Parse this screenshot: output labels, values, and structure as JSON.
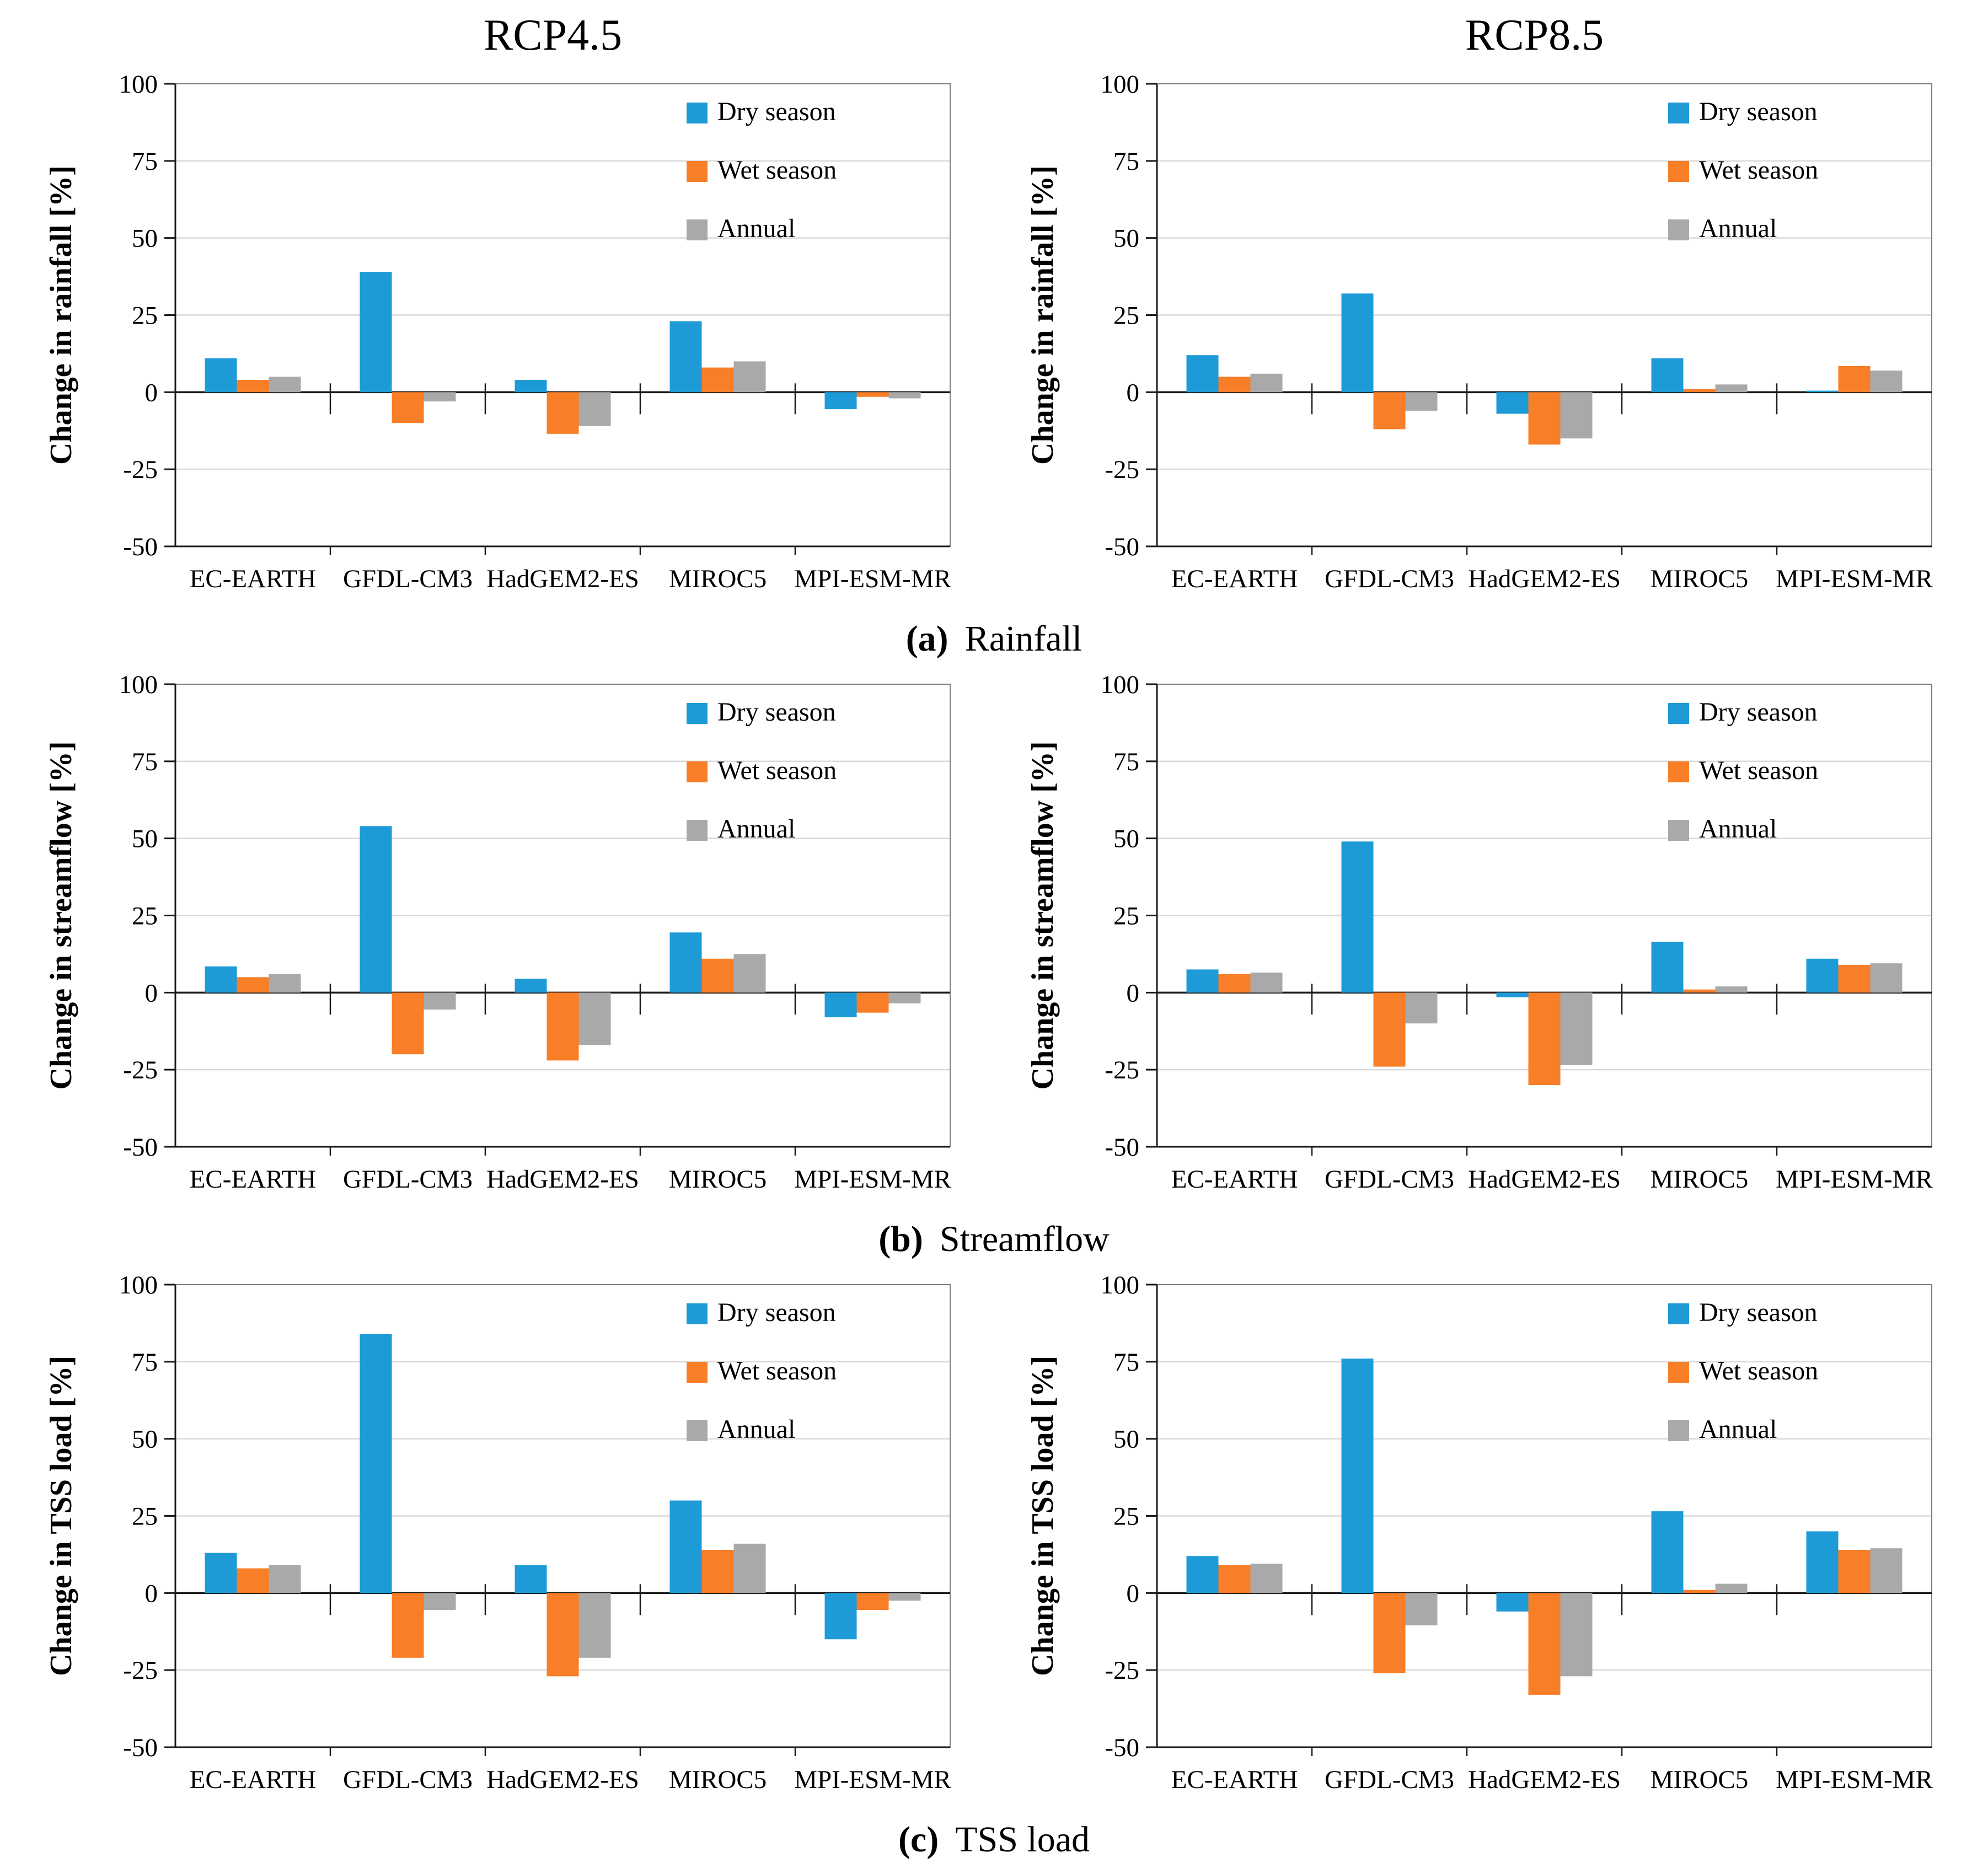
{
  "figure": {
    "column_titles": [
      "RCP4.5",
      "RCP8.5"
    ],
    "captions": [
      {
        "marker": "(a)",
        "label": "Rainfall"
      },
      {
        "marker": "(b)",
        "label": "Streamflow"
      },
      {
        "marker": "(c)",
        "label": "TSS load"
      }
    ],
    "legend": [
      "Dry season",
      "Wet season",
      "Annual"
    ],
    "colors": {
      "dry": "#1E9BD7",
      "wet": "#F87E27",
      "annual": "#A9A9A9",
      "grid": "#D9D9D9",
      "zero_axis": "#1A1A1A",
      "frame": "#7F7F7F",
      "text": "#000000"
    },
    "y_axis": {
      "min": -50,
      "max": 100,
      "tick_step": 25,
      "tick_labels": [
        "100",
        "75",
        "50",
        "25",
        "0",
        "-25",
        "-50"
      ]
    },
    "categories": [
      "EC-EARTH",
      "GFDL-CM3",
      "HadGEM2-ES",
      "MIROC5",
      "MPI-ESM-MR"
    ]
  },
  "chart_data": [
    {
      "type": "bar",
      "panel": "rainfall-rcp45",
      "scenario": "RCP4.5",
      "title": "RCP4.5",
      "ylabel": "Change in rainfall [%]",
      "ylim": [
        -50,
        100
      ],
      "grid": true,
      "legend_position": "top-right",
      "categories": [
        "EC-EARTH",
        "GFDL-CM3",
        "HadGEM2-ES",
        "MIROC5",
        "MPI-ESM-MR"
      ],
      "series": [
        {
          "name": "Dry season",
          "values": [
            11,
            39,
            4,
            23,
            -5.5
          ]
        },
        {
          "name": "Wet season",
          "values": [
            4,
            -10,
            -13.5,
            8,
            -1.5
          ]
        },
        {
          "name": "Annual",
          "values": [
            5,
            -3,
            -11,
            10,
            -2
          ]
        }
      ]
    },
    {
      "type": "bar",
      "panel": "rainfall-rcp85",
      "scenario": "RCP8.5",
      "title": "RCP8.5",
      "ylabel": "Change in rainfall [%]",
      "ylim": [
        -50,
        100
      ],
      "grid": true,
      "legend_position": "top-right",
      "categories": [
        "EC-EARTH",
        "GFDL-CM3",
        "HadGEM2-ES",
        "MIROC5",
        "MPI-ESM-MR"
      ],
      "series": [
        {
          "name": "Dry season",
          "values": [
            12,
            32,
            -7,
            11,
            0.5
          ]
        },
        {
          "name": "Wet season",
          "values": [
            5,
            -12,
            -17,
            1,
            8.5
          ]
        },
        {
          "name": "Annual",
          "values": [
            6,
            -6,
            -15,
            2.5,
            7
          ]
        }
      ]
    },
    {
      "type": "bar",
      "panel": "streamflow-rcp45",
      "scenario": "RCP4.5",
      "title": "",
      "ylabel": "Change in streamflow [%]",
      "ylim": [
        -50,
        100
      ],
      "grid": true,
      "legend_position": "top-right",
      "categories": [
        "EC-EARTH",
        "GFDL-CM3",
        "HadGEM2-ES",
        "MIROC5",
        "MPI-ESM-MR"
      ],
      "series": [
        {
          "name": "Dry season",
          "values": [
            8.5,
            54,
            4.5,
            19.5,
            -8
          ]
        },
        {
          "name": "Wet season",
          "values": [
            5,
            -20,
            -22,
            11,
            -6.5
          ]
        },
        {
          "name": "Annual",
          "values": [
            6,
            -5.5,
            -17,
            12.5,
            -3.5
          ]
        }
      ]
    },
    {
      "type": "bar",
      "panel": "streamflow-rcp85",
      "scenario": "RCP8.5",
      "title": "",
      "ylabel": "Change in streamflow [%]",
      "ylim": [
        -50,
        100
      ],
      "grid": true,
      "legend_position": "top-right",
      "categories": [
        "EC-EARTH",
        "GFDL-CM3",
        "HadGEM2-ES",
        "MIROC5",
        "MPI-ESM-MR"
      ],
      "series": [
        {
          "name": "Dry season",
          "values": [
            7.5,
            49,
            -1.5,
            16.5,
            11
          ]
        },
        {
          "name": "Wet season",
          "values": [
            6,
            -24,
            -30,
            1,
            9
          ]
        },
        {
          "name": "Annual",
          "values": [
            6.5,
            -10,
            -23.5,
            2,
            9.5
          ]
        }
      ]
    },
    {
      "type": "bar",
      "panel": "tss-rcp45",
      "scenario": "RCP4.5",
      "title": "",
      "ylabel": "Change in TSS load [%]",
      "ylim": [
        -50,
        100
      ],
      "grid": true,
      "legend_position": "top-right",
      "categories": [
        "EC-EARTH",
        "GFDL-CM3",
        "HadGEM2-ES",
        "MIROC5",
        "MPI-ESM-MR"
      ],
      "series": [
        {
          "name": "Dry season",
          "values": [
            13,
            84,
            9,
            30,
            -15
          ]
        },
        {
          "name": "Wet season",
          "values": [
            8,
            -21,
            -27,
            14,
            -5.5
          ]
        },
        {
          "name": "Annual",
          "values": [
            9,
            -5.5,
            -21,
            16,
            -2.5
          ]
        }
      ]
    },
    {
      "type": "bar",
      "panel": "tss-rcp85",
      "scenario": "RCP8.5",
      "title": "",
      "ylabel": "Change in TSS load [%]",
      "ylim": [
        -50,
        100
      ],
      "grid": true,
      "legend_position": "top-right",
      "categories": [
        "EC-EARTH",
        "GFDL-CM3",
        "HadGEM2-ES",
        "MIROC5",
        "MPI-ESM-MR"
      ],
      "series": [
        {
          "name": "Dry season",
          "values": [
            12,
            76,
            -6,
            26.5,
            20
          ]
        },
        {
          "name": "Wet season",
          "values": [
            9,
            -26,
            -33,
            1,
            14
          ]
        },
        {
          "name": "Annual",
          "values": [
            9.5,
            -10.5,
            -27,
            3,
            14.5
          ]
        }
      ]
    }
  ]
}
